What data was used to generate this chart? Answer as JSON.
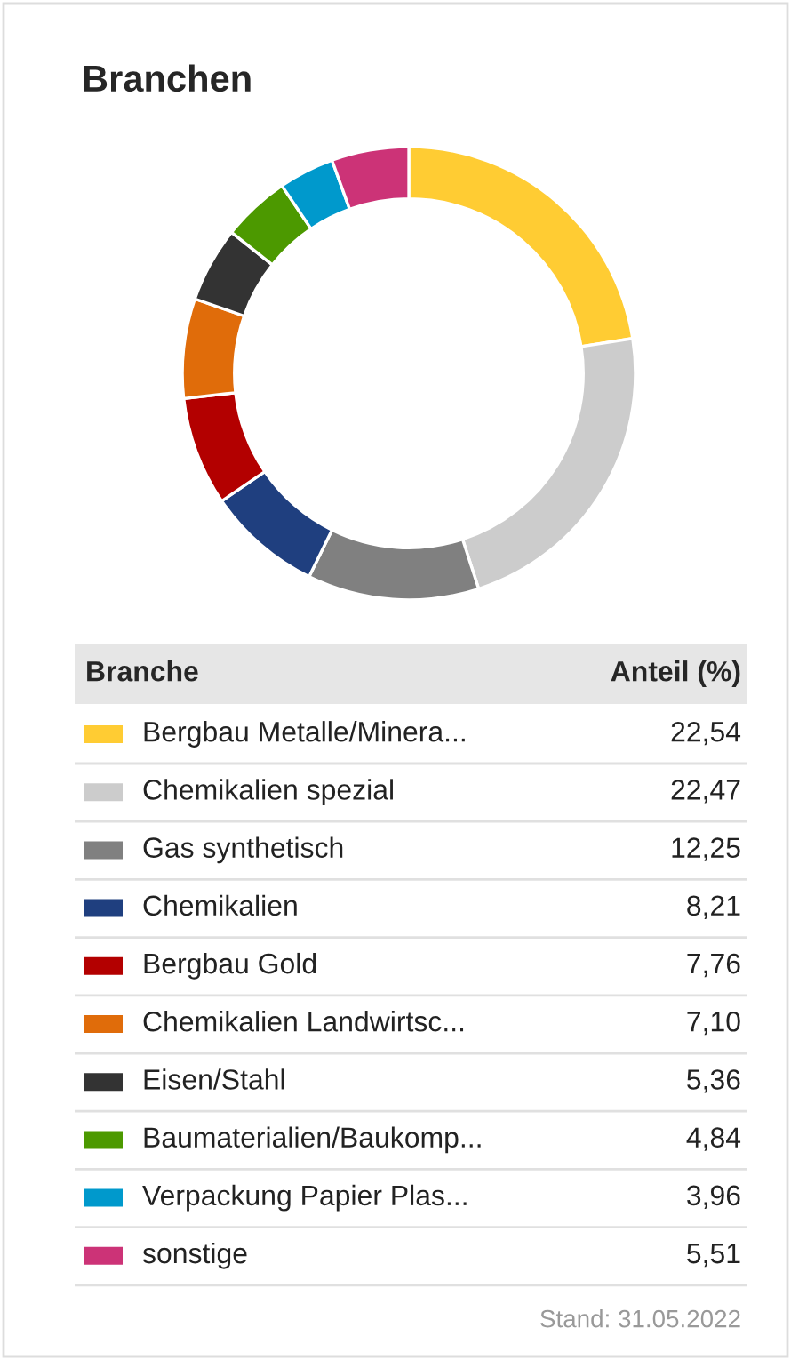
{
  "chart_data": {
    "type": "donut",
    "title": "Branchen",
    "categories": [
      "Bergbau Metalle/Minera...",
      "Chemikalien spezial",
      "Gas synthetisch",
      "Chemikalien",
      "Bergbau Gold",
      "Chemikalien Landwirtsc...",
      "Eisen/Stahl",
      "Baumaterialien/Baukomp...",
      "Verpackung Papier Plas...",
      "sonstige"
    ],
    "values": [
      22.54,
      22.47,
      12.25,
      8.21,
      7.76,
      7.1,
      5.36,
      4.84,
      3.96,
      5.51
    ],
    "value_labels": [
      "22,54",
      "22,47",
      "12,25",
      "8,21",
      "7,76",
      "7,10",
      "5,36",
      "4,84",
      "3,96",
      "5,51"
    ],
    "colors": [
      "#ffcc33",
      "#cccccc",
      "#808080",
      "#1f3f7f",
      "#b30000",
      "#e06c0a",
      "#333333",
      "#4c9900",
      "#0099cc",
      "#cc3377"
    ],
    "legend": "bottom",
    "legend_title": "Branche",
    "annotations": [
      "Anteil (%)",
      "Stand: 31.05.2022"
    ]
  }
}
